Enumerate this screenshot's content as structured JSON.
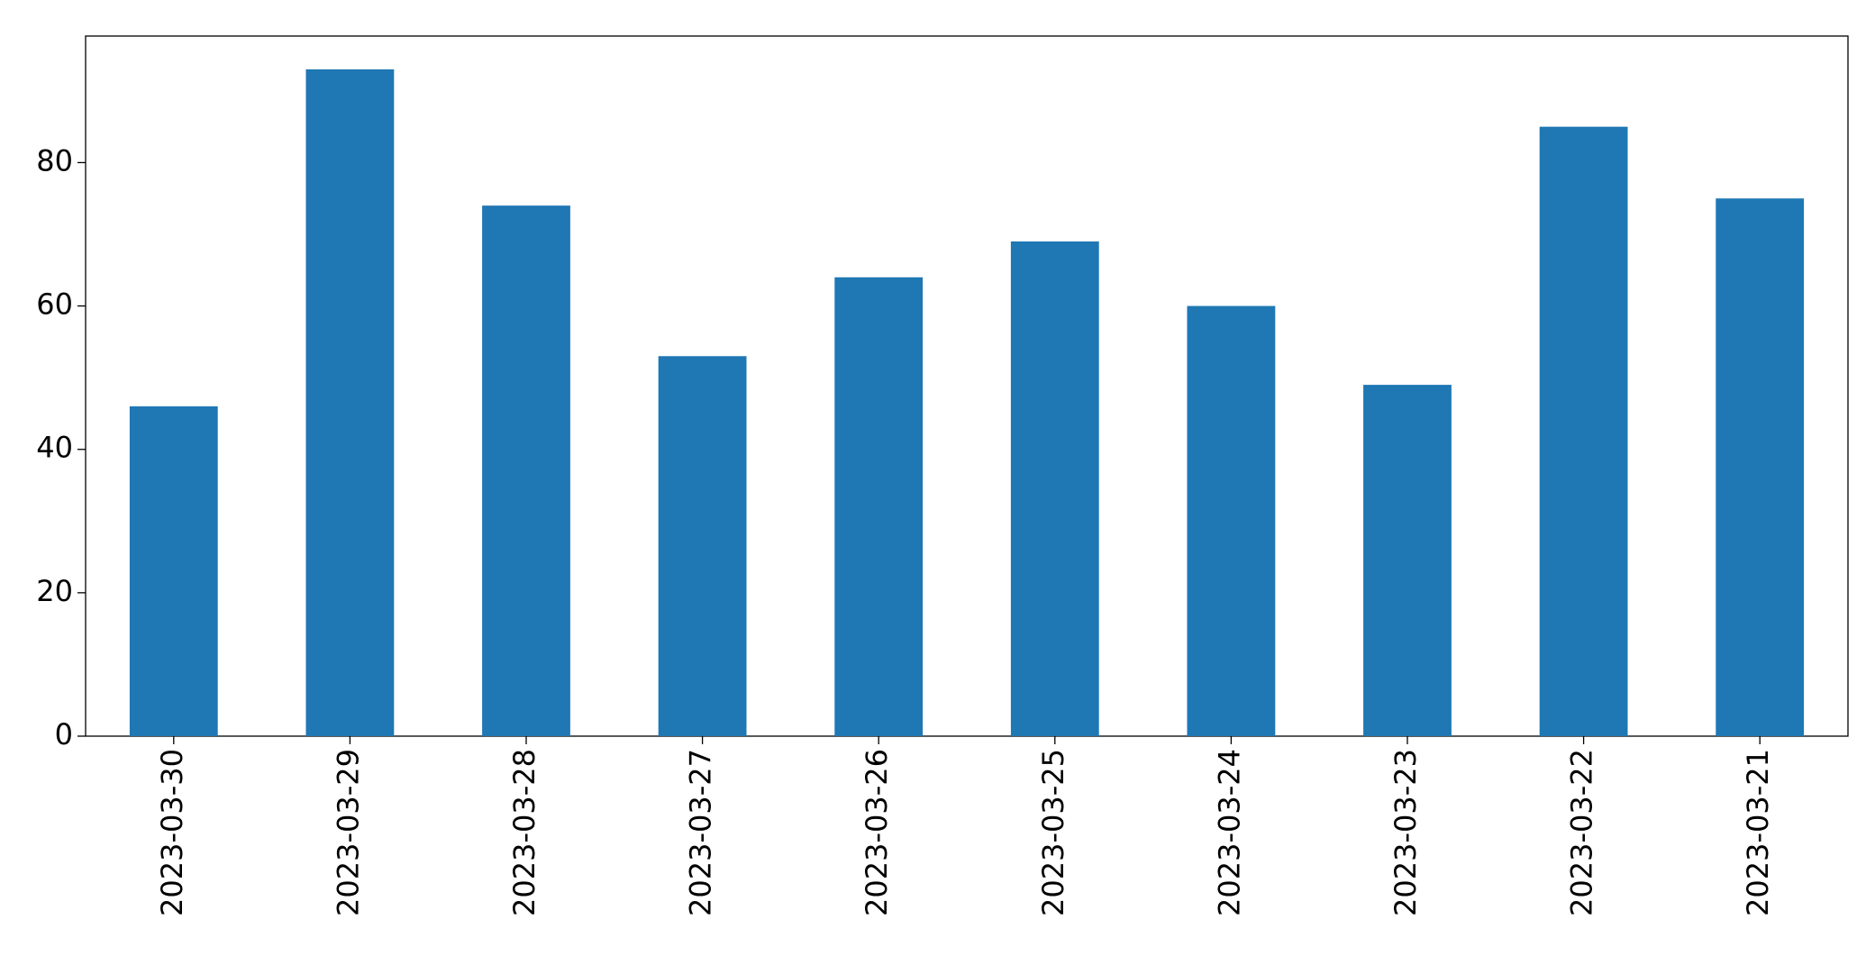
{
  "chart_data": {
    "type": "bar",
    "categories": [
      "2023-03-30",
      "2023-03-29",
      "2023-03-28",
      "2023-03-27",
      "2023-03-26",
      "2023-03-25",
      "2023-03-24",
      "2023-03-23",
      "2023-03-22",
      "2023-03-21"
    ],
    "values": [
      46,
      93,
      74,
      53,
      64,
      69,
      60,
      49,
      85,
      75
    ],
    "color": "#1f77b4",
    "ylim": [
      0,
      97.65
    ],
    "yticks": [
      0,
      20,
      40,
      60,
      80
    ],
    "grid": false
  }
}
